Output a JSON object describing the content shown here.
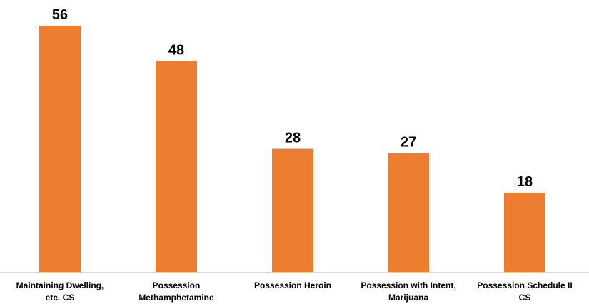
{
  "chart_data": {
    "type": "bar",
    "categories": [
      [
        "Maintaining Dwelling,",
        "etc. CS"
      ],
      [
        "Possession",
        "Methamphetamine"
      ],
      [
        "Possession Heroin"
      ],
      [
        "Possession with Intent,",
        "Marijuana"
      ],
      [
        "Possession Schedule II",
        "CS"
      ]
    ],
    "values": [
      56,
      48,
      28,
      27,
      18
    ],
    "data_labels": [
      "56",
      "48",
      "28",
      "27",
      "18"
    ],
    "title": "",
    "xlabel": "",
    "ylabel": "",
    "ylim": [
      0,
      56
    ],
    "grid": false,
    "legend": "none",
    "bar_color": "#ED7D31"
  }
}
